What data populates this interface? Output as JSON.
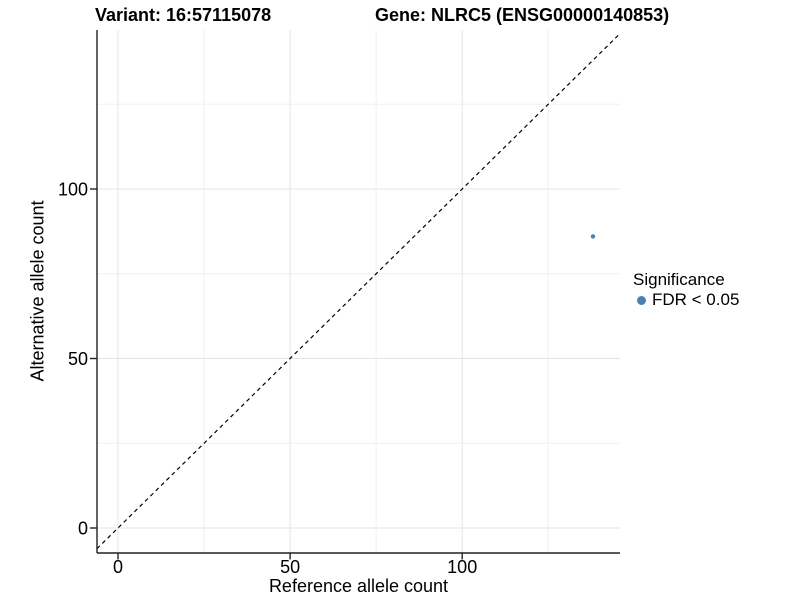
{
  "chart_data": {
    "type": "scatter",
    "titles": {
      "left": "Variant: 16:57115078",
      "right": "Gene: NLRC5 (ENSG00000140853)"
    },
    "xlabel": "Reference allele count",
    "ylabel": "Alternative allele count",
    "x_ticks": [
      0,
      50,
      100
    ],
    "y_ticks": [
      0,
      50,
      100
    ],
    "x_minor_ticks": [
      25,
      75,
      125
    ],
    "y_minor_ticks": [
      25,
      75,
      125
    ],
    "xlim": [
      -6.1,
      145.9
    ],
    "ylim": [
      -7.4,
      146.9
    ],
    "grid": "major and minor, light gray, white background",
    "identity_line": {
      "style": "dashed",
      "equation": "y = x"
    },
    "series": [
      {
        "name": "FDR < 0.05",
        "color": "#4682B4",
        "points": [
          {
            "x": 138,
            "y": 86
          }
        ]
      }
    ],
    "legend": {
      "title": "Significance",
      "position": "right",
      "entries": [
        {
          "label": "FDR < 0.05",
          "color": "#4682B4",
          "marker": "circle"
        }
      ]
    },
    "colors": {
      "background": "#ffffff",
      "text": "#000000",
      "axis_line": "#222222",
      "grid_major": "#e4e4e4",
      "grid_minor": "#f0f0f0",
      "identity_line": "#000000",
      "point": "#4682B4"
    }
  }
}
